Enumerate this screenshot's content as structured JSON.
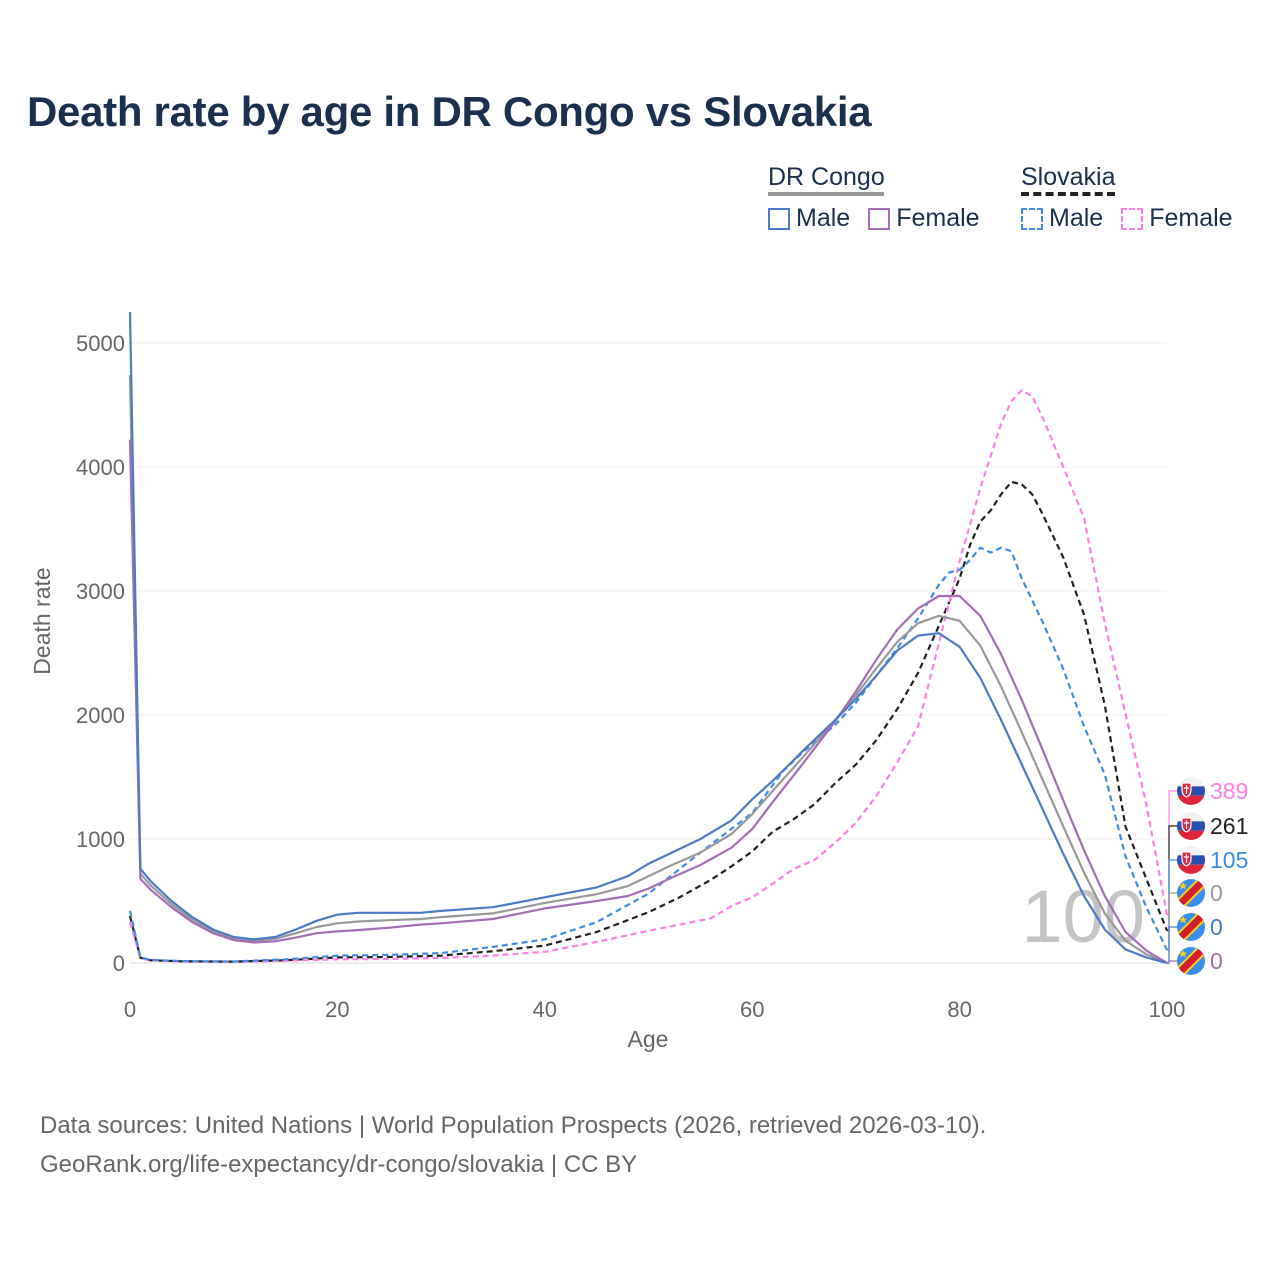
{
  "title": "Death rate by age in DR Congo vs Slovakia",
  "legend": {
    "groups": [
      {
        "name": "DR Congo",
        "line_color": "#999999",
        "line_style": "solid",
        "items": [
          {
            "label": "Male",
            "color": "#4a7bc4",
            "style": "solid"
          },
          {
            "label": "Female",
            "color": "#a56db5",
            "style": "solid"
          }
        ]
      },
      {
        "name": "Slovakia",
        "line_color": "#222222",
        "line_style": "dashed",
        "items": [
          {
            "label": "Male",
            "color": "#3c8ce8",
            "style": "dashed"
          },
          {
            "label": "Female",
            "color": "#ff7fe6",
            "style": "dashed"
          }
        ]
      }
    ]
  },
  "footer": {
    "line1": "Data sources: United Nations | World Population Prospects (2026, retrieved 2026-03-10).",
    "line2": "GeoRank.org/life-expectancy/dr-congo/slovakia | CC BY"
  },
  "chart_data": {
    "type": "line",
    "title": "Death rate by age in DR Congo vs Slovakia",
    "xlabel": "Age",
    "ylabel": "Death rate",
    "xlim": [
      0,
      100
    ],
    "ylim": [
      0,
      5200
    ],
    "xticks": [
      0,
      20,
      40,
      60,
      80,
      100
    ],
    "yticks": [
      0,
      1000,
      2000,
      3000,
      4000,
      5000
    ],
    "grid": true,
    "current_age_label": "100",
    "series": [
      {
        "name": "DR Congo Male",
        "color": "#4a7bc4",
        "dash": false,
        "width": 2.2,
        "x": [
          0,
          1,
          2,
          4,
          6,
          8,
          10,
          12,
          14,
          16,
          18,
          20,
          22,
          25,
          28,
          30,
          35,
          40,
          45,
          48,
          50,
          52,
          55,
          58,
          60,
          62,
          65,
          68,
          70,
          72,
          74,
          76,
          78,
          80,
          82,
          84,
          86,
          88,
          90,
          92,
          94,
          96,
          98,
          100
        ],
        "y": [
          5250,
          760,
          660,
          500,
          370,
          270,
          210,
          190,
          210,
          270,
          340,
          390,
          405,
          405,
          405,
          420,
          450,
          530,
          610,
          700,
          800,
          880,
          1000,
          1150,
          1320,
          1470,
          1720,
          1960,
          2130,
          2320,
          2520,
          2640,
          2660,
          2550,
          2300,
          1960,
          1600,
          1240,
          880,
          540,
          270,
          110,
          45,
          0
        ]
      },
      {
        "name": "DR Congo Female",
        "color": "#a56db5",
        "dash": false,
        "width": 2.2,
        "x": [
          0,
          1,
          2,
          4,
          6,
          8,
          10,
          12,
          14,
          16,
          18,
          20,
          22,
          25,
          28,
          30,
          35,
          40,
          45,
          48,
          50,
          52,
          55,
          58,
          60,
          62,
          65,
          68,
          70,
          72,
          74,
          76,
          78,
          80,
          82,
          84,
          86,
          88,
          90,
          92,
          94,
          96,
          98,
          100
        ],
        "y": [
          4220,
          680,
          590,
          450,
          330,
          240,
          185,
          165,
          175,
          205,
          240,
          255,
          265,
          285,
          310,
          320,
          355,
          440,
          500,
          540,
          600,
          680,
          790,
          930,
          1080,
          1300,
          1620,
          1950,
          2190,
          2450,
          2690,
          2860,
          2960,
          2960,
          2800,
          2490,
          2120,
          1720,
          1310,
          910,
          540,
          250,
          100,
          0
        ]
      },
      {
        "name": "DR Congo Total",
        "color": "#999999",
        "dash": false,
        "width": 2.2,
        "x": [
          0,
          1,
          2,
          4,
          6,
          8,
          10,
          12,
          14,
          16,
          18,
          20,
          22,
          25,
          28,
          30,
          35,
          40,
          45,
          48,
          50,
          52,
          55,
          58,
          60,
          62,
          65,
          68,
          70,
          72,
          74,
          76,
          78,
          80,
          82,
          84,
          86,
          88,
          90,
          92,
          94,
          96,
          98,
          100
        ],
        "y": [
          4740,
          720,
          625,
          475,
          350,
          255,
          195,
          178,
          195,
          240,
          290,
          320,
          335,
          345,
          355,
          370,
          400,
          485,
          555,
          620,
          700,
          780,
          890,
          1040,
          1200,
          1390,
          1670,
          1960,
          2160,
          2380,
          2590,
          2740,
          2800,
          2760,
          2560,
          2230,
          1860,
          1480,
          1100,
          730,
          400,
          180,
          70,
          0
        ]
      },
      {
        "name": "Slovakia Male",
        "color": "#3c8ce8",
        "dash": true,
        "width": 2.2,
        "x": [
          0,
          1,
          2,
          5,
          10,
          15,
          20,
          25,
          30,
          35,
          40,
          45,
          50,
          55,
          60,
          63,
          65,
          68,
          70,
          72,
          74,
          76,
          78,
          79,
          80,
          81,
          82,
          83,
          84,
          85,
          86,
          88,
          90,
          92,
          94,
          96,
          98,
          100
        ],
        "y": [
          420,
          45,
          25,
          15,
          12,
          30,
          60,
          65,
          80,
          130,
          190,
          330,
          560,
          890,
          1210,
          1550,
          1710,
          1920,
          2100,
          2320,
          2540,
          2780,
          3050,
          3150,
          3170,
          3250,
          3350,
          3310,
          3350,
          3320,
          3100,
          2750,
          2370,
          1910,
          1520,
          860,
          450,
          105
        ]
      },
      {
        "name": "Slovakia Female",
        "color": "#ff7fe6",
        "dash": true,
        "width": 2.2,
        "x": [
          0,
          1,
          2,
          5,
          10,
          15,
          20,
          25,
          30,
          35,
          40,
          45,
          50,
          53,
          56,
          58,
          60,
          62,
          64,
          66,
          68,
          70,
          72,
          74,
          76,
          78,
          80,
          82,
          84,
          85,
          86,
          87,
          88,
          90,
          92,
          94,
          96,
          98,
          100
        ],
        "y": [
          330,
          40,
          20,
          12,
          10,
          18,
          30,
          32,
          40,
          60,
          90,
          170,
          260,
          310,
          360,
          460,
          530,
          640,
          760,
          830,
          970,
          1130,
          1350,
          1620,
          1910,
          2580,
          3240,
          3830,
          4350,
          4530,
          4620,
          4570,
          4400,
          4000,
          3590,
          2740,
          2010,
          1280,
          389
        ]
      },
      {
        "name": "Slovakia Total",
        "color": "#222222",
        "dash": true,
        "width": 2.2,
        "x": [
          0,
          1,
          2,
          5,
          10,
          15,
          20,
          25,
          30,
          35,
          40,
          45,
          50,
          53,
          56,
          58,
          60,
          62,
          64,
          66,
          68,
          70,
          72,
          74,
          76,
          78,
          80,
          81,
          82,
          83,
          84,
          85,
          86,
          87,
          88,
          90,
          92,
          94,
          96,
          98,
          100
        ],
        "y": [
          380,
          42,
          22,
          14,
          11,
          22,
          45,
          48,
          60,
          95,
          140,
          250,
          410,
          530,
          670,
          780,
          900,
          1060,
          1160,
          1280,
          1450,
          1600,
          1800,
          2050,
          2340,
          2720,
          3100,
          3370,
          3560,
          3650,
          3780,
          3880,
          3860,
          3780,
          3620,
          3270,
          2810,
          2080,
          1100,
          680,
          261
        ]
      }
    ],
    "end_labels": [
      {
        "text": "389",
        "color": "#ff7fe6",
        "flag": "slovakia"
      },
      {
        "text": "261",
        "color": "#222222",
        "flag": "slovakia"
      },
      {
        "text": "105",
        "color": "#3c8ce8",
        "flag": "slovakia"
      },
      {
        "text": "0",
        "color": "#999999",
        "flag": "drcongo"
      },
      {
        "text": "0",
        "color": "#4a7bc4",
        "flag": "drcongo"
      },
      {
        "text": "0",
        "color": "#a56db5",
        "flag": "drcongo"
      }
    ]
  }
}
